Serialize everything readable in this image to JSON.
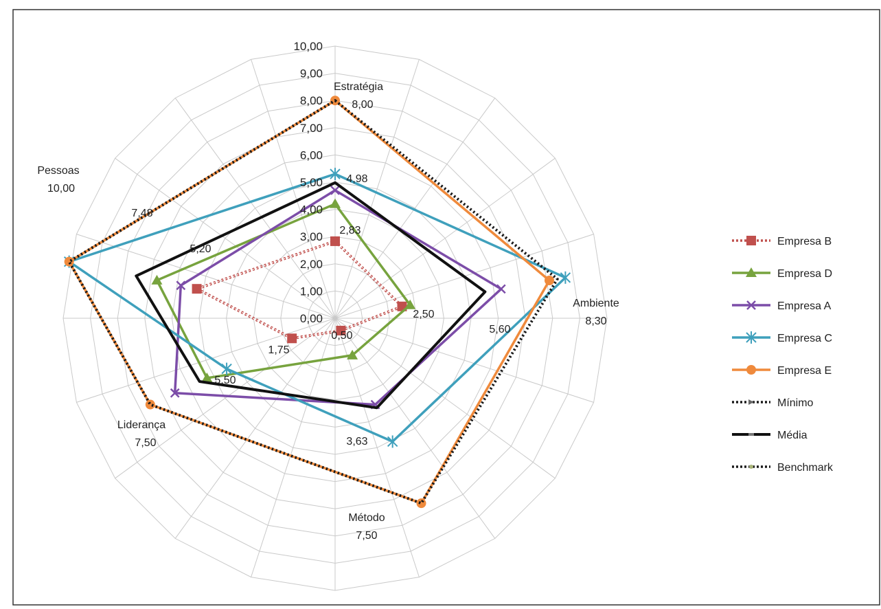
{
  "chart_data": {
    "type": "radar",
    "axes": [
      "Estratégia",
      "Ambiente",
      "Método",
      "Liderança",
      "Pessoas"
    ],
    "axis_value_labels": [
      "8,00",
      "8,30",
      "7,50",
      "7,50",
      "10,00"
    ],
    "rlim": [
      0,
      10
    ],
    "ticks": [
      "0,00",
      "1,00",
      "2,00",
      "3,00",
      "4,00",
      "5,00",
      "6,00",
      "7,00",
      "8,00",
      "9,00",
      "10,00"
    ],
    "grid": true,
    "legend_position": "right",
    "series": [
      {
        "name": "Empresa B",
        "values": [
          2.83,
          2.5,
          0.5,
          1.75,
          5.2
        ],
        "color": "#c0504d",
        "marker": "square",
        "dash": "dotted"
      },
      {
        "name": "Empresa D",
        "values": [
          4.2,
          2.8,
          1.5,
          5.2,
          6.7
        ],
        "color": "#77a33e",
        "marker": "triangle",
        "dash": "solid"
      },
      {
        "name": "Empresa A",
        "values": [
          4.7,
          6.2,
          3.5,
          6.5,
          5.8
        ],
        "color": "#7c4da8",
        "marker": "x",
        "dash": "solid"
      },
      {
        "name": "Empresa C",
        "values": [
          5.3,
          8.6,
          5.0,
          4.4,
          10.0
        ],
        "color": "#3fa0bc",
        "marker": "star",
        "dash": "solid"
      },
      {
        "name": "Empresa E",
        "values": [
          8.0,
          8.0,
          7.5,
          7.5,
          10.0
        ],
        "color": "#ef8a3c",
        "marker": "circle",
        "dash": "solid"
      },
      {
        "name": "Mínimo",
        "values": [
          0,
          0,
          0,
          0,
          0
        ],
        "color": "#1a1a1a",
        "marker": "none",
        "dash": "dotted"
      },
      {
        "name": "Média",
        "values": [
          4.98,
          5.6,
          3.63,
          5.5,
          7.48
        ],
        "color": "#111111",
        "marker": "none",
        "dash": "solid"
      },
      {
        "name": "Benchmark",
        "values": [
          8.0,
          8.3,
          7.5,
          7.5,
          10.0
        ],
        "color": "#1a1a1a",
        "marker": "none",
        "dash": "dotted"
      }
    ],
    "data_labels": [
      {
        "series": "Empresa B",
        "axis": 0,
        "text": "2,83"
      },
      {
        "series": "Empresa B",
        "axis": 1,
        "text": "2,50"
      },
      {
        "series": "Empresa B",
        "axis": 2,
        "text": "0,50"
      },
      {
        "series": "Empresa B",
        "axis": 3,
        "text": "1,75"
      },
      {
        "series": "Empresa B",
        "axis": 4,
        "text": "5,20"
      },
      {
        "series": "Média",
        "axis": 0,
        "text": "4,98"
      },
      {
        "series": "Média",
        "axis": 1,
        "text": "5,60"
      },
      {
        "series": "Média",
        "axis": 2,
        "text": "3,63"
      },
      {
        "series": "Média",
        "axis": 3,
        "text": "5,50"
      },
      {
        "series": "Média",
        "axis": 4,
        "text": "7,48"
      }
    ]
  }
}
